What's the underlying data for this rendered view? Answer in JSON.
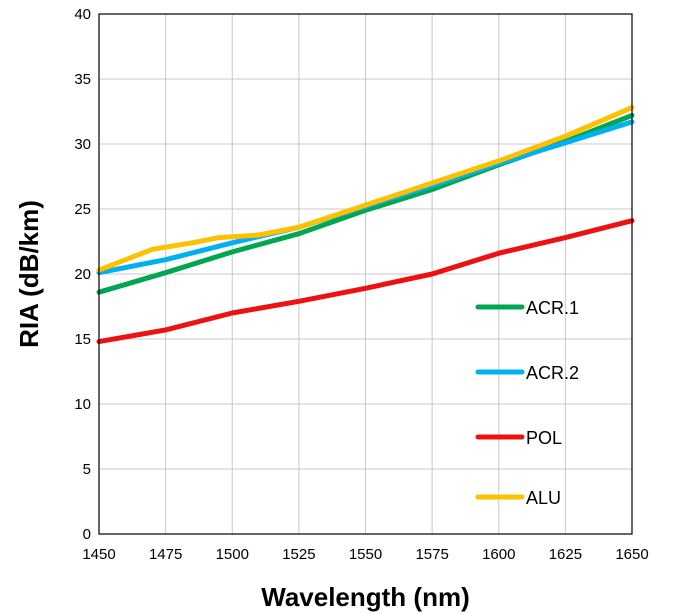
{
  "chart_data": {
    "type": "line",
    "title": "",
    "xlabel": "Wavelength (nm)",
    "ylabel": "RIA (dB/km)",
    "xlim": [
      1450,
      1650
    ],
    "ylim": [
      0,
      40
    ],
    "xticks": [
      "1450",
      "1475",
      "1500",
      "1525",
      "1550",
      "1575",
      "1600",
      "1625",
      "1650"
    ],
    "yticks": [
      "0",
      "5",
      "10",
      "15",
      "20",
      "25",
      "30",
      "35",
      "40"
    ],
    "grid": true,
    "legend_position": "right",
    "series": [
      {
        "name": "ACR.1",
        "color": "#00A650",
        "x": [
          1450,
          1475,
          1500,
          1525,
          1550,
          1575,
          1600,
          1625,
          1650
        ],
        "y": [
          18.6,
          20.1,
          21.7,
          23.1,
          24.9,
          26.5,
          28.4,
          30.2,
          32.2
        ]
      },
      {
        "name": "ACR.2",
        "color": "#00B0F0",
        "x": [
          1450,
          1475,
          1500,
          1525,
          1550,
          1575,
          1600,
          1625,
          1650
        ],
        "y": [
          20.1,
          21.1,
          22.4,
          23.6,
          25.2,
          26.8,
          28.5,
          30.1,
          31.7
        ]
      },
      {
        "name": "POL",
        "color": "#EE1111",
        "x": [
          1450,
          1475,
          1500,
          1525,
          1550,
          1575,
          1600,
          1625,
          1650
        ],
        "y": [
          14.8,
          15.7,
          17.0,
          17.9,
          18.9,
          20.0,
          21.6,
          22.8,
          24.1
        ]
      },
      {
        "name": "ALU",
        "color": "#FFC000",
        "x": [
          1450,
          1460,
          1470,
          1485,
          1495,
          1510,
          1525,
          1550,
          1575,
          1600,
          1625,
          1650
        ],
        "y": [
          20.3,
          21.1,
          21.9,
          22.4,
          22.8,
          23.0,
          23.6,
          25.3,
          27.0,
          28.7,
          30.6,
          32.8
        ]
      }
    ]
  }
}
